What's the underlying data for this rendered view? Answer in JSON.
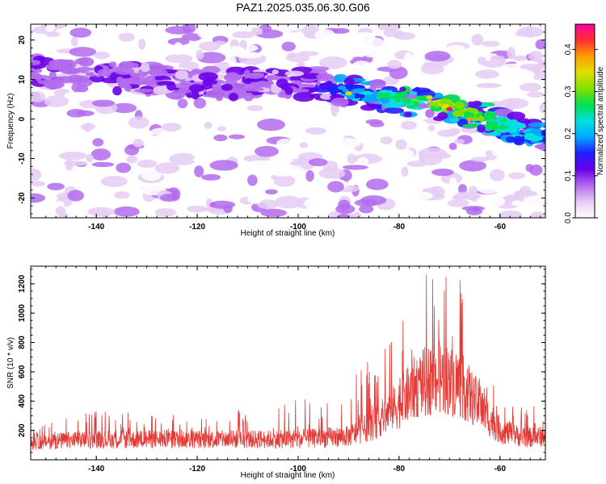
{
  "title": "PAZ1.2025.035.06.30.G06",
  "colors": {
    "snr_line": "#e53935",
    "colorbar": [
      "#ffffff",
      "#e6ccf5",
      "#b36bed",
      "#6a00e8",
      "#1f1fff",
      "#00a8ff",
      "#00e0e0",
      "#00e050",
      "#7fe000",
      "#e0e000",
      "#ff9f00",
      "#ff3030",
      "#ff00a0"
    ]
  },
  "chart_data": [
    {
      "type": "heatmap",
      "title": "",
      "xlabel": "Height of straight line (km)",
      "ylabel": "Frequency (Hz)",
      "xlim": [
        -153,
        -51
      ],
      "ylim": [
        -25,
        24
      ],
      "x_ticks": [
        -140,
        -120,
        -100,
        -80,
        -60
      ],
      "y_ticks": [
        -20,
        -10,
        0,
        10,
        20
      ],
      "colorbar": {
        "label": "Normalized spectral amplitude",
        "range": [
          0,
          0.46
        ],
        "ticks": [
          "0.0",
          "0.1",
          "0.2",
          "0.3",
          "0.4"
        ]
      },
      "ridge": {
        "description_points_x": [
          -153,
          -140,
          -120,
          -100,
          -90,
          -80,
          -70,
          -60,
          -51
        ],
        "description_points_y": [
          12,
          11,
          9,
          9,
          7,
          5,
          3,
          -1,
          -5
        ],
        "peak_amplitude_x": -70,
        "peak_amplitude_y": 2.5
      }
    },
    {
      "type": "line",
      "title": "",
      "xlabel": "Height of straight line (km)",
      "ylabel": "SNR (10 * v/v)",
      "xlim": [
        -153,
        -51
      ],
      "ylim": [
        0,
        1320
      ],
      "x_ticks": [
        -140,
        -120,
        -100,
        -80,
        -60
      ],
      "y_ticks": [
        200,
        400,
        600,
        800,
        1000,
        1200
      ],
      "envelope_x": [
        -153,
        -140,
        -120,
        -100,
        -90,
        -85,
        -80,
        -76,
        -72,
        -68,
        -64,
        -60,
        -55,
        -51
      ],
      "envelope_mean": [
        120,
        140,
        140,
        140,
        160,
        240,
        380,
        520,
        560,
        520,
        360,
        200,
        150,
        160
      ],
      "envelope_max": [
        240,
        340,
        300,
        420,
        500,
        770,
        940,
        1300,
        1240,
        1310,
        760,
        420,
        380,
        400
      ]
    }
  ]
}
